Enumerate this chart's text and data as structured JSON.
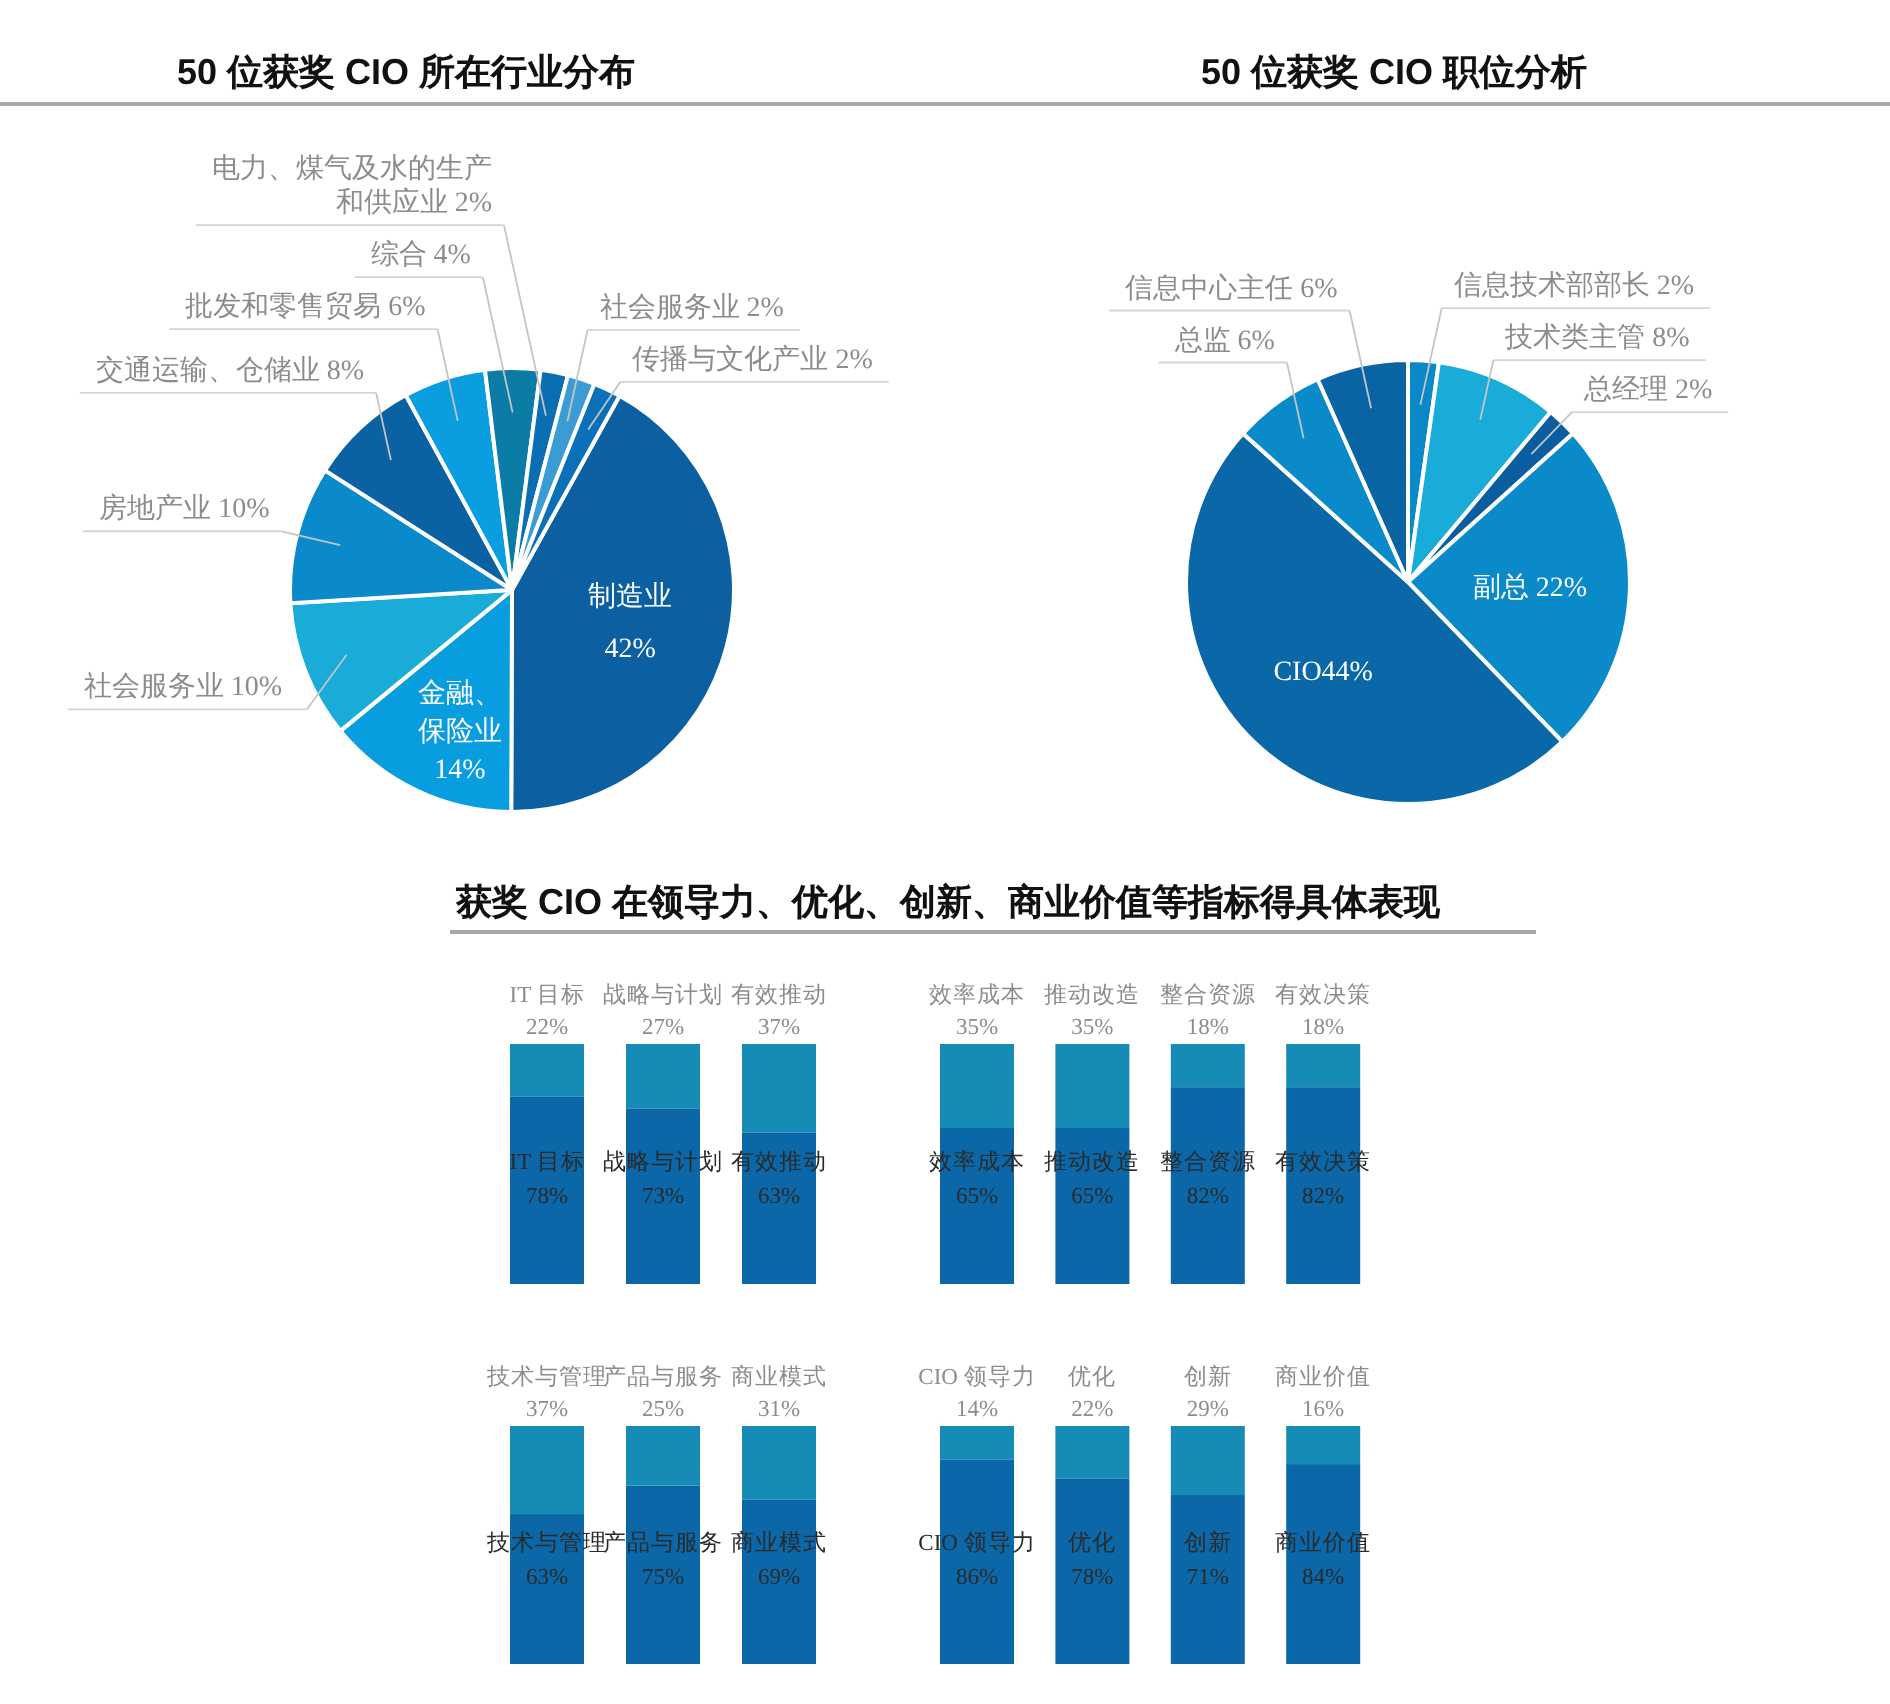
{
  "chart_data": [
    {
      "type": "pie",
      "title": "50 位获奖 CIO 所在行业分布",
      "categories": [
        "制造业",
        "金融、保险业",
        "社会服务业",
        "房地产业",
        "交通运输、仓储业",
        "批发和零售贸易",
        "综合",
        "电力、煤气及水的生产和供应业",
        "社会服务业",
        "传播与文化产业"
      ],
      "values": [
        42,
        14,
        10,
        10,
        8,
        6,
        4,
        2,
        2,
        2
      ],
      "value_labels": [
        "42%",
        "14%",
        "10%",
        "10%",
        "8%",
        "6%",
        "4%",
        "2%",
        "2%",
        "2%"
      ],
      "colors": [
        "#0c5fa0",
        "#079ddf",
        "#19acd9",
        "#0a8acb",
        "#0b62a3",
        "#0a9ee0",
        "#0a7ca6",
        "#0a6eb2",
        "#3b9bd5",
        "#0a70b8"
      ]
    },
    {
      "type": "pie",
      "title": "50 位获奖 CIO 职位分析",
      "categories": [
        "信息技术部部长",
        "技术类主管",
        "总经理",
        "副总",
        "CIO",
        "总监",
        "信息中心主任"
      ],
      "values": [
        2,
        8,
        2,
        22,
        44,
        6,
        6
      ],
      "value_labels": [
        "2%",
        "8%",
        "2%",
        "22%",
        "44%",
        "6%",
        "6%"
      ],
      "colors": [
        "#0a89c9",
        "#19acd8",
        "#0a5e9f",
        "#0a8ac8",
        "#0a68a9",
        "#0a8ac8",
        "#0a63a3"
      ]
    },
    {
      "type": "bar",
      "title": "获奖 CIO 在领导力、优化、创新、商业价值等指标得具体表现",
      "stacked": true,
      "categories": [
        "IT 目标",
        "战略与计划",
        "有效推动"
      ],
      "series": [
        {
          "color": "#0b67a7",
          "values": [
            78,
            73,
            63
          ],
          "value_labels": [
            "78%",
            "73%",
            "63%"
          ]
        },
        {
          "color": "#168bb6",
          "values": [
            22,
            27,
            37
          ],
          "value_labels": [
            "22%",
            "27%",
            "37%"
          ]
        }
      ]
    },
    {
      "type": "bar",
      "stacked": true,
      "categories": [
        "效率成本",
        "推动改造",
        "整合资源",
        "有效决策"
      ],
      "series": [
        {
          "color": "#0b67a7",
          "values": [
            65,
            65,
            82,
            82
          ],
          "value_labels": [
            "65%",
            "65%",
            "82%",
            "82%"
          ]
        },
        {
          "color": "#168bb6",
          "values": [
            35,
            35,
            18,
            18
          ],
          "value_labels": [
            "35%",
            "35%",
            "18%",
            "18%"
          ]
        }
      ]
    },
    {
      "type": "bar",
      "stacked": true,
      "categories": [
        "技术与管理",
        "产品与服务",
        "商业模式"
      ],
      "series": [
        {
          "color": "#0b67a7",
          "values": [
            63,
            75,
            69
          ],
          "value_labels": [
            "63%",
            "75%",
            "69%"
          ]
        },
        {
          "color": "#168bb6",
          "values": [
            37,
            25,
            31
          ],
          "value_labels": [
            "37%",
            "25%",
            "31%"
          ]
        }
      ]
    },
    {
      "type": "bar",
      "stacked": true,
      "categories": [
        "CIO 领导力",
        "优化",
        "创新",
        "商业价值"
      ],
      "series": [
        {
          "color": "#0b67a7",
          "values": [
            86,
            78,
            71,
            84
          ],
          "value_labels": [
            "86%",
            "78%",
            "71%",
            "84%"
          ]
        },
        {
          "color": "#168bb6",
          "values": [
            14,
            22,
            29,
            16
          ],
          "value_labels": [
            "14%",
            "22%",
            "29%",
            "16%"
          ]
        }
      ]
    }
  ]
}
